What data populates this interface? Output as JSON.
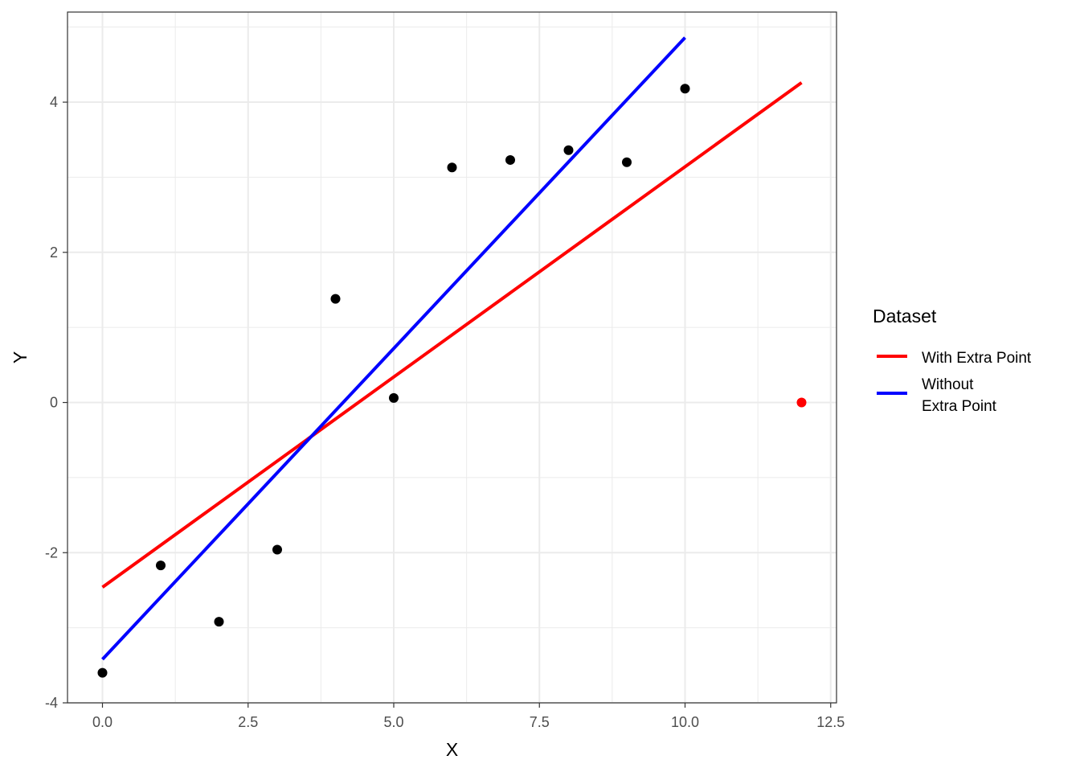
{
  "chart_data": {
    "type": "scatter",
    "title": "",
    "xlabel": "X",
    "ylabel": "Y",
    "xlim": [
      -0.6,
      12.6
    ],
    "ylim": [
      -4.0,
      5.2
    ],
    "x_ticks": [
      0.0,
      2.5,
      5.0,
      7.5,
      10.0,
      12.5
    ],
    "x_tick_labels": [
      "0.0",
      "2.5",
      "5.0",
      "7.5",
      "10.0",
      "12.5"
    ],
    "y_ticks": [
      -4,
      -2,
      0,
      2,
      4
    ],
    "y_tick_labels": [
      "-4",
      "-2",
      "0",
      "2",
      "4"
    ],
    "grid": true,
    "points": {
      "x": [
        0,
        1,
        2,
        3,
        4,
        5,
        6,
        7,
        8,
        9,
        10
      ],
      "y": [
        -3.6,
        -2.17,
        -2.92,
        -1.96,
        1.38,
        0.06,
        3.13,
        3.23,
        3.36,
        3.2,
        4.18
      ],
      "color": "#000000"
    },
    "extra_point": {
      "x": 12,
      "y": 0.0,
      "color": "#ff0000"
    },
    "series": [
      {
        "name": "With Extra Point",
        "color": "#ff0000",
        "x": [
          0,
          12
        ],
        "y": [
          -2.46,
          4.26
        ]
      },
      {
        "name": "Without Extra Point",
        "color": "#0000ff",
        "x": [
          0,
          10
        ],
        "y": [
          -3.42,
          4.86
        ]
      }
    ],
    "legend": {
      "title": "Dataset",
      "position": "right",
      "entries": [
        {
          "lines": [
            "With Extra Point"
          ],
          "color": "#ff0000"
        },
        {
          "lines": [
            "Without",
            "Extra Point"
          ],
          "color": "#0000ff"
        }
      ]
    }
  }
}
